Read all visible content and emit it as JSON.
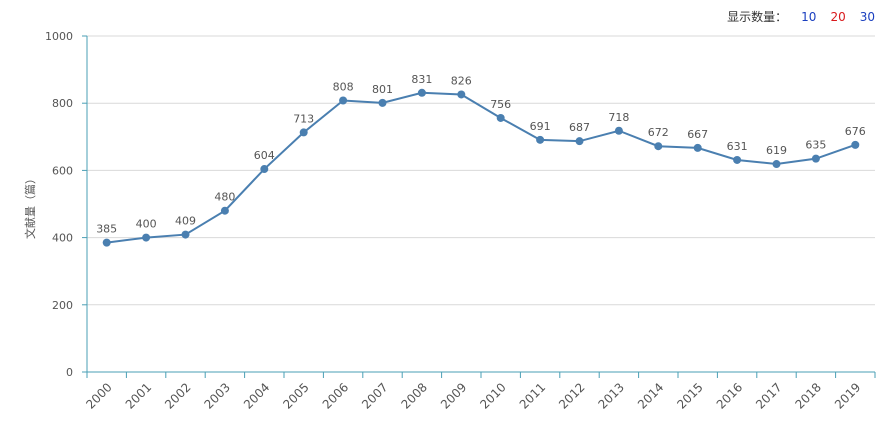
{
  "count_selector": {
    "label": "显示数量：",
    "options": [
      {
        "text": "10",
        "color": "#1a3fbf"
      },
      {
        "text": "20",
        "color": "#d9191c"
      },
      {
        "text": "30",
        "color": "#1a3fbf"
      }
    ]
  },
  "chart_data": {
    "type": "line",
    "title": "",
    "xlabel": "",
    "ylabel": "文献量（篇）",
    "ylim": [
      0,
      1000
    ],
    "yticks": [
      0,
      200,
      400,
      600,
      800,
      1000
    ],
    "categories": [
      "2000",
      "2001",
      "2002",
      "2003",
      "2004",
      "2005",
      "2006",
      "2007",
      "2008",
      "2009",
      "2010",
      "2011",
      "2012",
      "2013",
      "2014",
      "2015",
      "2016",
      "2017",
      "2018",
      "2019"
    ],
    "series": [
      {
        "name": "文献量",
        "color": "#4a7fb0",
        "values": [
          385,
          400,
          409,
          480,
          604,
          713,
          808,
          801,
          831,
          826,
          756,
          691,
          687,
          718,
          672,
          667,
          631,
          619,
          635,
          676
        ]
      }
    ],
    "grid": true
  }
}
